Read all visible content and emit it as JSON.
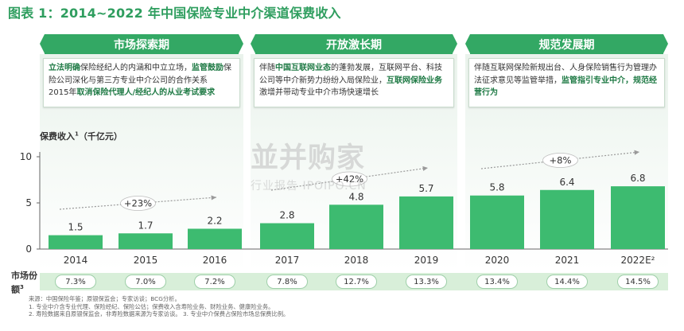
{
  "title": "图表 1：2014~2022 年中国保险专业中介渠道保费收入",
  "phases": [
    {
      "name": "市场探索期",
      "desc_html": "<b>立法明确</b>保险经纪人的内涵和中立立场，<b>监管鼓励</b>保险公司深化与第三方专业中介公司的合作关系<br>2015年<b>取消保险代理人/经纪人的从业考试要求</b>"
    },
    {
      "name": "开放激长期",
      "desc_html": "伴随<b>中国互联网业态</b>的蓬勃发展，互联网平台、科技公司等中介新势力纷纷入局保险业，<b>互联网保险业务</b>激增并带动专业中介市场快速增长"
    },
    {
      "name": "规范发展期",
      "desc_html": "伴随互联网保险新规出台、人身保险销售行为管理办法征求意见等监管举措，<b>监管指引专业中介，规范经营行为</b>"
    }
  ],
  "colors": {
    "accent": "#33a864",
    "bar": "#3dbb70",
    "title": "#2f9e5f"
  },
  "chart_data": {
    "type": "bar",
    "ylabel": "保费收入",
    "ylabel_sup": "1",
    "ylabel_unit": "（千亿元）",
    "categories": [
      "2014",
      "2015",
      "2016",
      "2017",
      "2018",
      "2019",
      "2020",
      "2021",
      "2022E²"
    ],
    "values": [
      1.5,
      1.7,
      2.2,
      2.8,
      4.8,
      5.7,
      5.8,
      6.4,
      6.8
    ],
    "value_labels": [
      "1.5",
      "1.7",
      "2.2",
      "2.8",
      "4.8",
      "5.7",
      "5.8",
      "6.4",
      "6.8"
    ],
    "yticks": [
      "0",
      "5",
      "10"
    ],
    "ylim": [
      0,
      10
    ],
    "growth_annotations": [
      "+23%",
      "+42%",
      "+8%"
    ]
  },
  "market_share": {
    "label": "市场份额",
    "label_sup": "3",
    "values": [
      "7.3%",
      "7.0%",
      "7.2%",
      "7.8%",
      "12.7%",
      "13.3%",
      "13.4%",
      "14.4%",
      "14.5%"
    ]
  },
  "notes": {
    "line1": "来源：中国保险年鉴；原银保监会；专家访谈；BCG分析。",
    "line2": "1. 专业中介含专业代理、保险经纪、保险公估；保费收入含寿险业务、财险业务、健康险业务。",
    "line3": "2. 寿险数据来自原银保监会，非寿险数据来源为专家访谈。 3. 专业中介保费占保险市场总保费比例。"
  },
  "watermark": {
    "big": "並并购家",
    "small": "行业报告 IPOIPO.CN"
  }
}
